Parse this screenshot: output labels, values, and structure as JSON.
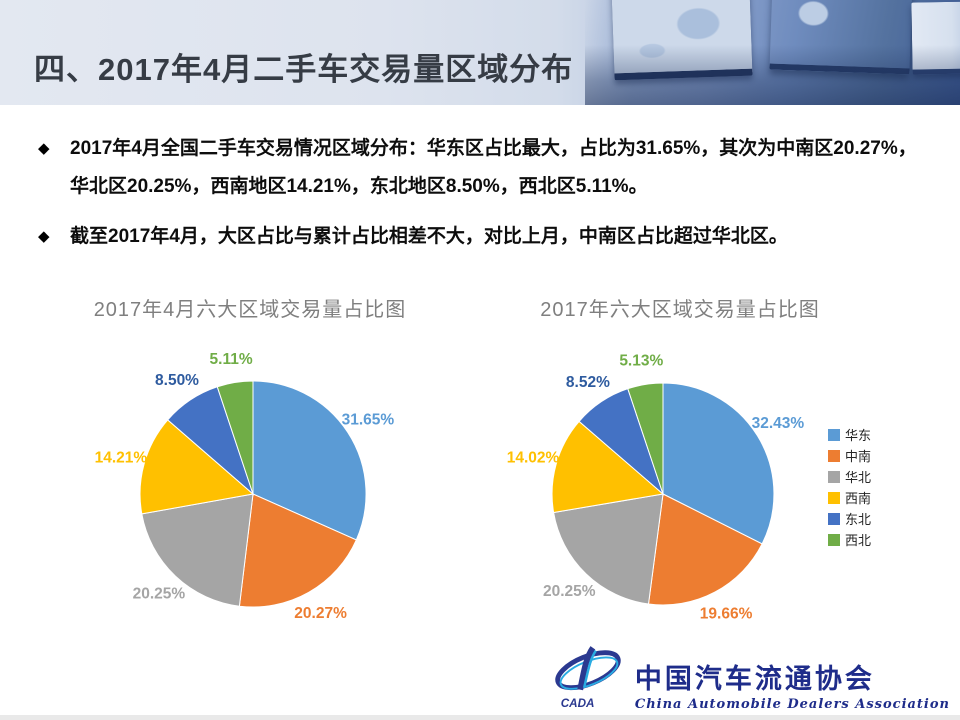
{
  "slide": {
    "title": "四、2017年4月二手车交易量区域分布",
    "bullet_marker": "◆",
    "bullets": [
      "2017年4月全国二手车交易情况区域分布：华东区占比最大，占比为31.65%，其次为中南区20.27%，华北区20.25%，西南地区14.21%，东北地区8.50%，西北区5.11%。",
      "截至2017年4月，大区占比与累计占比相差不大，对比上月，中南区占比超过华北区。"
    ]
  },
  "chart_data": [
    {
      "type": "pie",
      "title": "2017年4月六大区域交易量占比图",
      "categories": [
        "华东",
        "中南",
        "华北",
        "西南",
        "东北",
        "西北"
      ],
      "values": [
        31.65,
        20.27,
        20.25,
        14.21,
        8.5,
        5.11
      ],
      "labels": [
        "31.65%",
        "20.27%",
        "20.25%",
        "14.21%",
        "8.50%",
        "5.11%"
      ],
      "colors": [
        "#5B9BD5",
        "#ED7D31",
        "#A5A5A5",
        "#FFC000",
        "#4472C4",
        "#70AD47"
      ],
      "label_colors": [
        "#5B9BD5",
        "#ED7D31",
        "#A5A5A5",
        "#FFC000",
        "#2E5B9F",
        "#70AD47"
      ],
      "start_angle_deg": 0,
      "direction": "clockwise",
      "legend": false
    },
    {
      "type": "pie",
      "title": "2017年六大区域交易量占比图",
      "categories": [
        "华东",
        "中南",
        "华北",
        "西南",
        "东北",
        "西北"
      ],
      "values": [
        32.43,
        19.66,
        20.25,
        14.02,
        8.52,
        5.13
      ],
      "labels": [
        "32.43%",
        "19.66%",
        "20.25%",
        "14.02%",
        "8.52%",
        "5.13%"
      ],
      "colors": [
        "#5B9BD5",
        "#ED7D31",
        "#A5A5A5",
        "#FFC000",
        "#4472C4",
        "#70AD47"
      ],
      "label_colors": [
        "#5B9BD5",
        "#ED7D31",
        "#A5A5A5",
        "#FFC000",
        "#2E5B9F",
        "#70AD47"
      ],
      "start_angle_deg": 0,
      "direction": "clockwise",
      "legend": true,
      "legend_position": "right"
    }
  ],
  "logo": {
    "cn": "中国汽车流通协会",
    "en": "China Automobile Dealers Association",
    "emblem_text": "CADA",
    "color_dark_blue": "#1e2c8a",
    "color_accent_blue": "#29abe2"
  }
}
